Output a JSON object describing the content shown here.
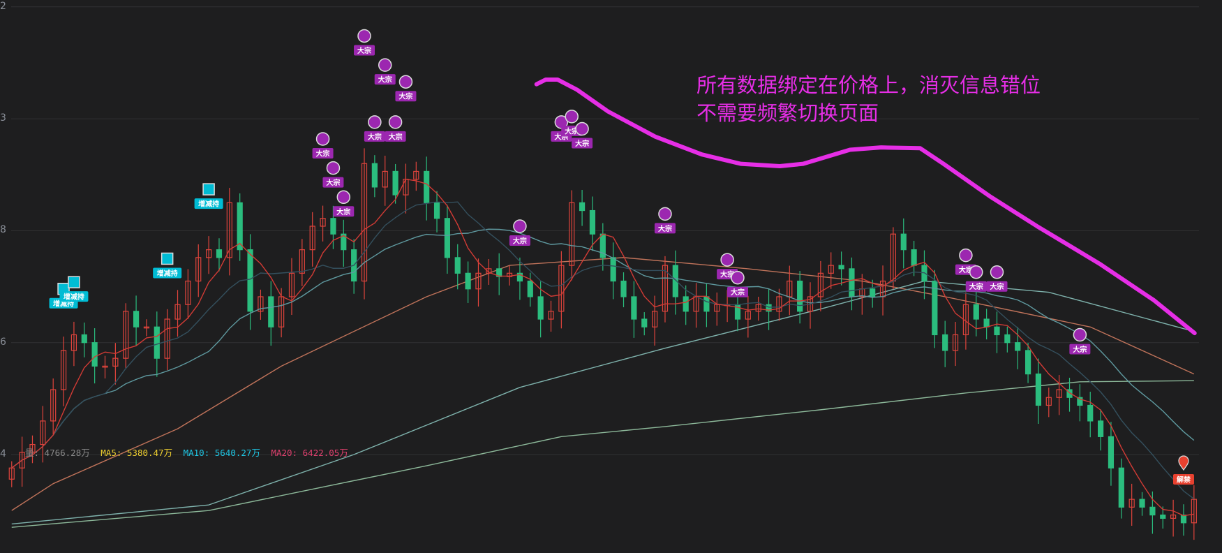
{
  "chart_data": {
    "type": "candlestick",
    "title": "",
    "y_axis": {
      "ticks": [
        {
          "value": 4,
          "label": "2"
        },
        {
          "value": 3,
          "label": "3"
        },
        {
          "value": 2,
          "label": "8"
        },
        {
          "value": 1,
          "label": "6"
        },
        {
          "value": 0,
          "label": "4"
        }
      ],
      "ylim": [
        -0.8,
        4.05
      ],
      "grid": true
    },
    "close": [
      -0.12,
      0.02,
      0.09,
      0.3,
      0.58,
      0.93,
      1.07,
      1.0,
      0.79,
      0.79,
      0.86,
      1.28,
      1.14,
      1.14,
      0.86,
      1.21,
      1.34,
      1.55,
      1.76,
      1.83,
      1.76,
      2.25,
      1.83,
      1.28,
      1.41,
      1.14,
      1.41,
      1.62,
      1.83,
      2.04,
      2.11,
      1.97,
      1.83,
      1.55,
      2.6,
      2.39,
      2.53,
      2.32,
      2.46,
      2.53,
      2.25,
      2.11,
      1.76,
      1.62,
      1.48,
      1.62,
      1.66,
      1.59,
      1.62,
      1.55,
      1.41,
      1.21,
      1.28,
      1.69,
      2.25,
      2.18,
      1.97,
      1.76,
      1.55,
      1.41,
      1.21,
      1.14,
      1.28,
      1.69,
      1.41,
      1.28,
      1.41,
      1.28,
      1.34,
      1.34,
      1.21,
      1.28,
      1.34,
      1.28,
      1.41,
      1.55,
      1.28,
      1.41,
      1.62,
      1.69,
      1.66,
      1.41,
      1.48,
      1.41,
      1.55,
      1.97,
      1.83,
      1.69,
      1.55,
      1.07,
      0.93,
      1.07,
      1.34,
      1.21,
      1.14,
      1.07,
      1.0,
      0.93,
      0.72,
      0.44,
      0.51,
      0.58,
      0.51,
      0.44,
      0.3,
      0.16,
      -0.12,
      -0.47,
      -0.4,
      -0.47,
      -0.54,
      -0.57,
      -0.54,
      -0.61,
      -0.4
    ],
    "colors": {
      "up": "#e0443c",
      "down": "#2bbd7e",
      "ma5": "#d23b35",
      "ma10": "#34505e",
      "ma20": "#5f9aa0",
      "long1": "#c0735a",
      "long2": "#7fb3ad",
      "long3": "#8db99a"
    },
    "long_ma": [
      {
        "key": "long1",
        "points": [
          [
            0,
            -0.5
          ],
          [
            4,
            -0.26
          ],
          [
            16,
            0.23
          ],
          [
            26,
            0.79
          ],
          [
            40,
            1.41
          ],
          [
            48,
            1.69
          ],
          [
            59,
            1.76
          ],
          [
            71,
            1.66
          ],
          [
            82,
            1.55
          ],
          [
            90,
            1.41
          ],
          [
            104,
            1.14
          ],
          [
            114,
            0.72
          ]
        ]
      },
      {
        "key": "long2",
        "points": [
          [
            0,
            -0.62
          ],
          [
            19,
            -0.45
          ],
          [
            33,
            0.0
          ],
          [
            49,
            0.6
          ],
          [
            63,
            0.95
          ],
          [
            78,
            1.3
          ],
          [
            88,
            1.55
          ],
          [
            100,
            1.45
          ],
          [
            114,
            1.1
          ]
        ]
      },
      {
        "key": "long3",
        "points": [
          [
            0,
            -0.65
          ],
          [
            19,
            -0.5
          ],
          [
            40,
            -0.1
          ],
          [
            53,
            0.16
          ],
          [
            63,
            0.25
          ],
          [
            78,
            0.4
          ],
          [
            92,
            0.55
          ],
          [
            103,
            0.65
          ],
          [
            114,
            0.66
          ]
        ]
      }
    ],
    "markers": [
      {
        "type": "dazong",
        "label": "大宗",
        "index": 34,
        "price": 3.74
      },
      {
        "type": "dazong",
        "label": "大宗",
        "index": 36,
        "price": 3.48
      },
      {
        "type": "dazong",
        "label": "大宗",
        "index": 38,
        "price": 3.33
      },
      {
        "type": "dazong",
        "label": "大宗",
        "index": 35,
        "price": 2.97
      },
      {
        "type": "dazong",
        "label": "大宗",
        "index": 37,
        "price": 2.97
      },
      {
        "type": "dazong",
        "label": "大宗",
        "index": 30,
        "price": 2.82
      },
      {
        "type": "dazong",
        "label": "大宗",
        "index": 31,
        "price": 2.56
      },
      {
        "type": "dazong",
        "label": "大宗",
        "index": 32,
        "price": 2.3
      },
      {
        "type": "dazong",
        "label": "大宗",
        "index": 49,
        "price": 2.04
      },
      {
        "type": "dazong",
        "label": "大宗",
        "index": 53,
        "price": 2.97
      },
      {
        "type": "dazong",
        "label": "大宗",
        "index": 54,
        "price": 3.02
      },
      {
        "type": "dazong",
        "label": "大宗",
        "index": 55,
        "price": 2.91
      },
      {
        "type": "dazong",
        "label": "大宗",
        "index": 63,
        "price": 2.15
      },
      {
        "type": "dazong",
        "label": "大宗",
        "index": 69,
        "price": 1.74
      },
      {
        "type": "dazong",
        "label": "大宗",
        "index": 70,
        "price": 1.58
      },
      {
        "type": "dazong",
        "label": "大宗",
        "index": 92,
        "price": 1.78
      },
      {
        "type": "dazong",
        "label": "大宗",
        "index": 93,
        "price": 1.63
      },
      {
        "type": "dazong",
        "label": "大宗",
        "index": 95,
        "price": 1.63
      },
      {
        "type": "dazong",
        "label": "大宗",
        "index": 103,
        "price": 1.07
      },
      {
        "type": "zengjianchi",
        "label": "增减持",
        "index": 19,
        "price": 2.37
      },
      {
        "type": "zengjianchi",
        "label": "增减持",
        "index": 15,
        "price": 1.75
      },
      {
        "type": "zengjianchi",
        "label": "增减持",
        "index": 5,
        "price": 1.48
      },
      {
        "type": "zengjianchi",
        "label": "增减持",
        "index": 6,
        "price": 1.54
      },
      {
        "type": "jiejin",
        "label": "解禁",
        "index": 113,
        "price": -0.1
      }
    ],
    "marker_colors": {
      "dazong": "#9c27b0",
      "zengjianchi": "#00bcd4",
      "jiejin": "#e8412f"
    }
  },
  "legend": {
    "vol": {
      "text": "量: 4766.28万",
      "color": "#8a8a8a"
    },
    "ma5": {
      "text": "MA5: 5380.47万",
      "color": "#f0d030"
    },
    "ma10": {
      "text": "MA10: 5640.27万",
      "color": "#1ec8e6"
    },
    "ma20": {
      "text": "MA20: 6422.05万",
      "color": "#e0406e"
    }
  },
  "annotation": {
    "line1": "所有数据绑定在价格上，消灭信息错位",
    "line2": "不需要频繁切换页面",
    "color": "#e62ee6"
  }
}
